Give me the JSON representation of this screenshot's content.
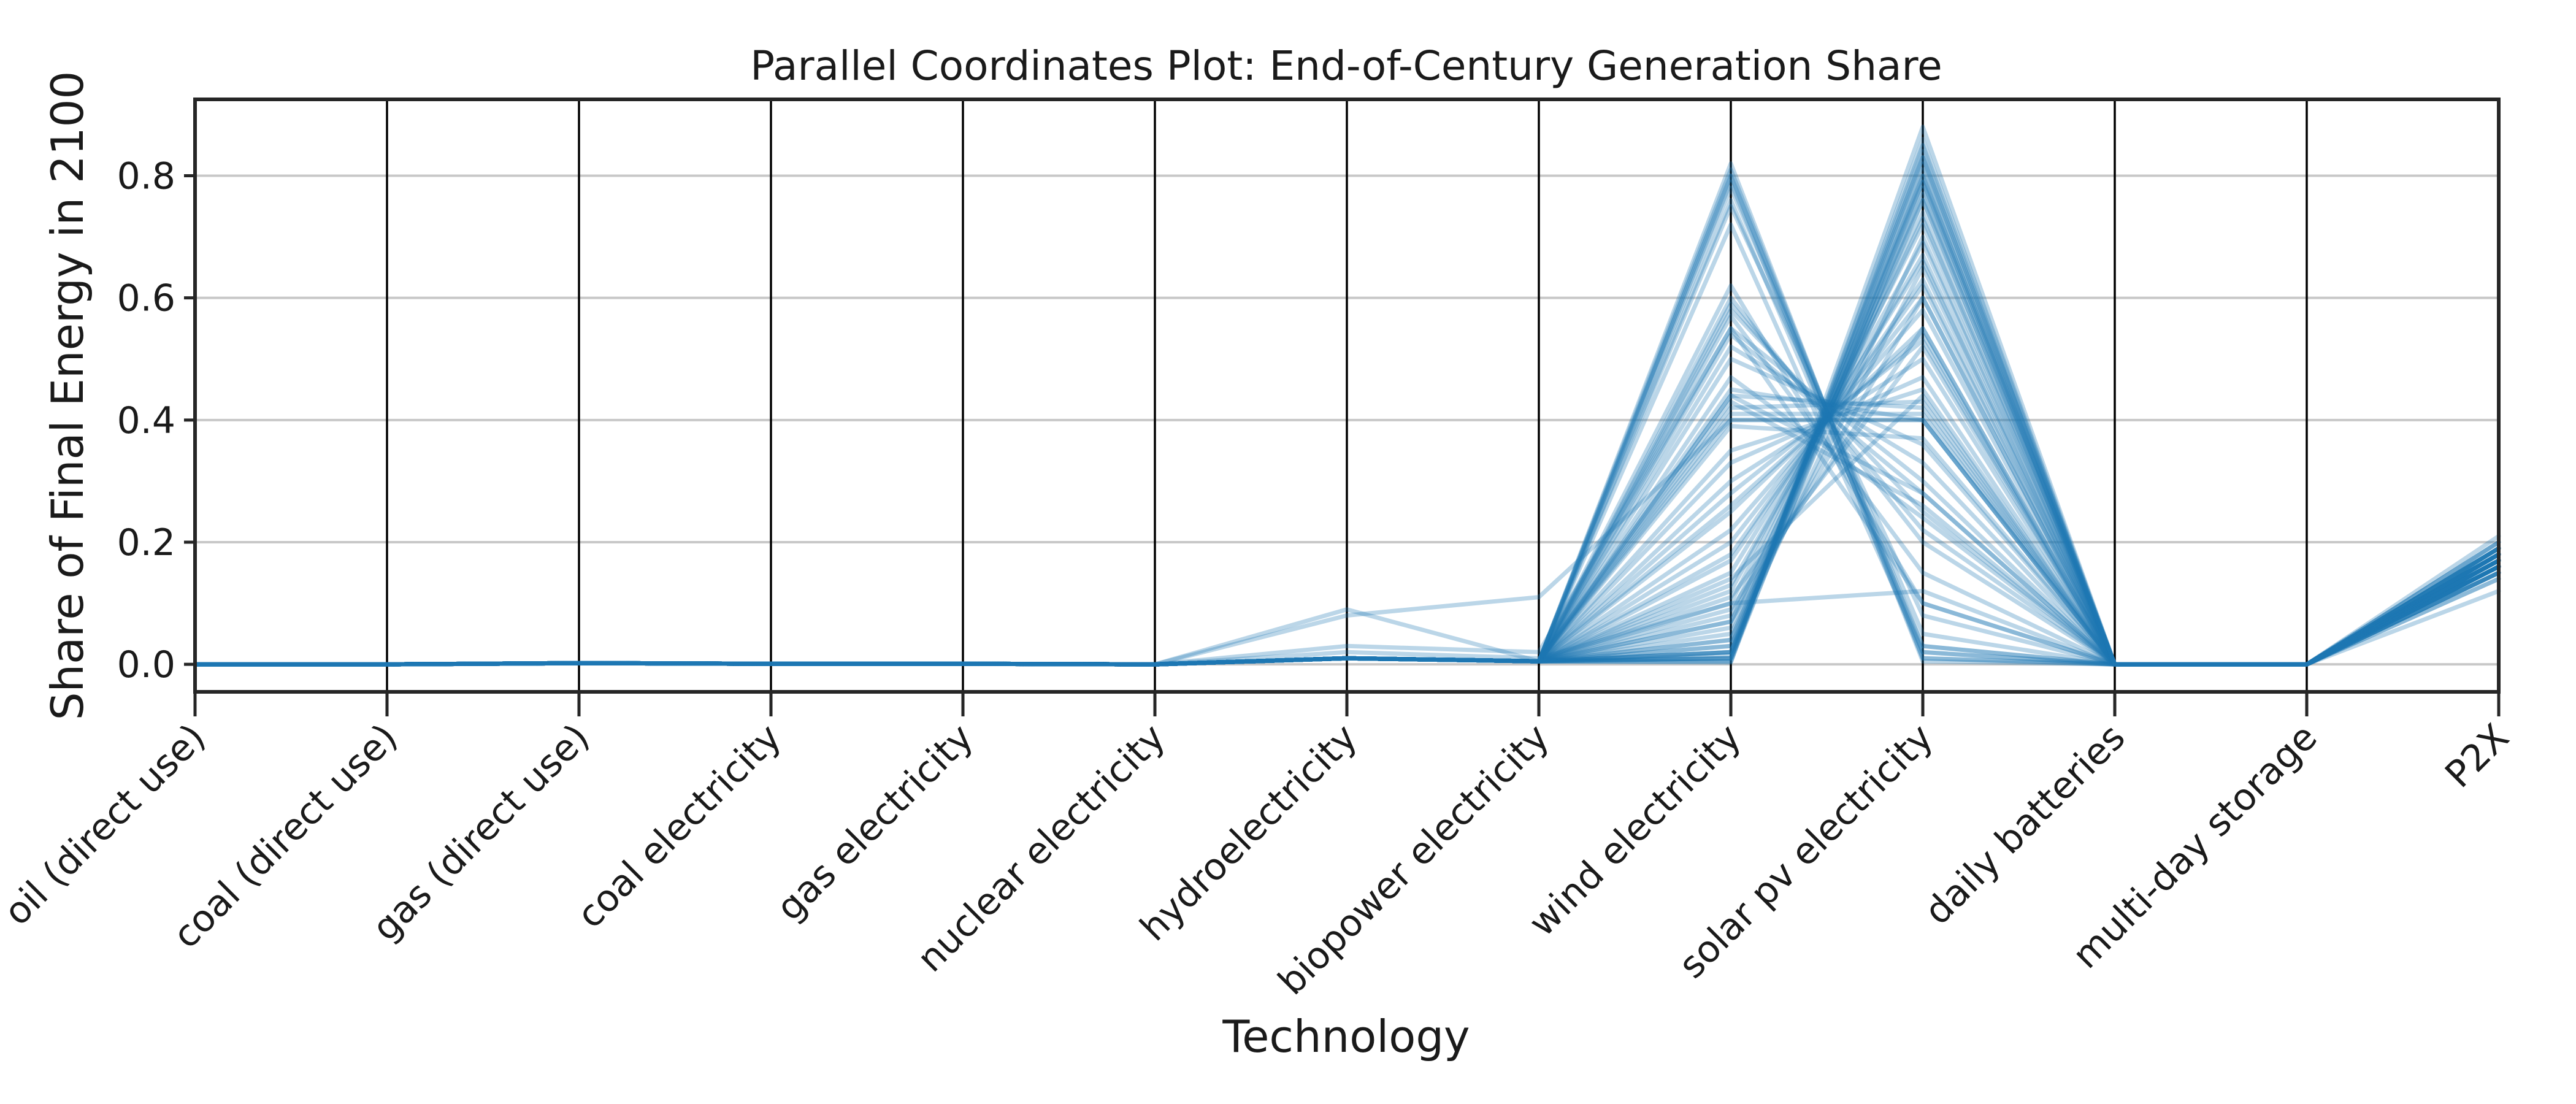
{
  "chart_data": {
    "type": "parallel-coordinates",
    "title": "Parallel Coordinates Plot: End-of-Century Generation Share",
    "xlabel": "Technology",
    "ylabel": "Share of Final Energy in 2100",
    "categories": [
      "oil (direct use)",
      "coal (direct use)",
      "gas (direct use)",
      "coal electricity",
      "gas electricity",
      "nuclear electricity",
      "hydroelectricity",
      "biopower electricity",
      "wind electricity",
      "solar pv electricity",
      "daily batteries",
      "multi-day storage",
      "P2X"
    ],
    "yticks": [
      0.0,
      0.2,
      0.4,
      0.6,
      0.8
    ],
    "ytick_labels": [
      "0.0",
      "0.2",
      "0.4",
      "0.6",
      "0.8"
    ],
    "ylim": [
      -0.045,
      0.925
    ],
    "grid": "horizontal",
    "line_color": "#1f77b4",
    "line_alpha": 0.3,
    "series": [
      {
        "values": [
          0,
          0,
          0.002,
          0.001,
          0.001,
          0,
          0.01,
          0.005,
          0.82,
          0.01,
          0,
          0,
          0.17
        ]
      },
      {
        "values": [
          0,
          0,
          0.002,
          0.001,
          0.001,
          0,
          0.01,
          0.005,
          0.81,
          0.02,
          0,
          0,
          0.16
        ]
      },
      {
        "values": [
          0,
          0,
          0.002,
          0.001,
          0.001,
          0,
          0.01,
          0.005,
          0.8,
          0.03,
          0,
          0,
          0.18
        ]
      },
      {
        "values": [
          0,
          0,
          0.002,
          0.001,
          0.001,
          0,
          0.01,
          0.005,
          0.78,
          0.05,
          0,
          0,
          0.15
        ]
      },
      {
        "values": [
          0,
          0,
          0.002,
          0.001,
          0.001,
          0,
          0.01,
          0.005,
          0.75,
          0.08,
          0,
          0,
          0.17
        ]
      },
      {
        "values": [
          0,
          0,
          0.002,
          0.001,
          0.001,
          0,
          0.01,
          0.005,
          0.6,
          0.2,
          0,
          0,
          0.19
        ]
      },
      {
        "values": [
          0,
          0,
          0.002,
          0.001,
          0.001,
          0,
          0.01,
          0.005,
          0.59,
          0.22,
          0,
          0,
          0.16
        ]
      },
      {
        "values": [
          0,
          0,
          0.002,
          0.001,
          0.001,
          0,
          0.01,
          0.005,
          0.58,
          0.25,
          0,
          0,
          0.18
        ]
      },
      {
        "values": [
          0,
          0,
          0.002,
          0.001,
          0.001,
          0,
          0.01,
          0.005,
          0.55,
          0.3,
          0,
          0,
          0.17
        ]
      },
      {
        "values": [
          0,
          0,
          0.002,
          0.001,
          0.001,
          0,
          0.01,
          0.005,
          0.52,
          0.33,
          0,
          0,
          0.14
        ]
      },
      {
        "values": [
          0,
          0,
          0.002,
          0.001,
          0.001,
          0,
          0.01,
          0.005,
          0.5,
          0.36,
          0,
          0,
          0.16
        ]
      },
      {
        "values": [
          0,
          0,
          0.002,
          0.001,
          0.001,
          0,
          0.01,
          0.005,
          0.45,
          0.4,
          0,
          0,
          0.18
        ]
      },
      {
        "values": [
          0,
          0,
          0.002,
          0.001,
          0.001,
          0,
          0.01,
          0.005,
          0.44,
          0.42,
          0,
          0,
          0.17
        ]
      },
      {
        "values": [
          0,
          0,
          0.002,
          0.001,
          0.001,
          0,
          0.01,
          0.005,
          0.42,
          0.43,
          0,
          0,
          0.15
        ]
      },
      {
        "values": [
          0,
          0,
          0.002,
          0.001,
          0.001,
          0,
          0.01,
          0.005,
          0.41,
          0.41,
          0,
          0,
          0.19
        ]
      },
      {
        "values": [
          0,
          0,
          0.002,
          0.001,
          0.001,
          0,
          0.01,
          0.005,
          0.4,
          0.4,
          0,
          0,
          0.16
        ]
      },
      {
        "values": [
          0,
          0,
          0.002,
          0.001,
          0.001,
          0,
          0.01,
          0.005,
          0.39,
          0.37,
          0,
          0,
          0.18
        ]
      },
      {
        "values": [
          0,
          0,
          0.002,
          0.001,
          0.001,
          0,
          0.01,
          0.005,
          0.3,
          0.5,
          0,
          0,
          0.17
        ]
      },
      {
        "values": [
          0,
          0,
          0.002,
          0.001,
          0.001,
          0,
          0.01,
          0.005,
          0.28,
          0.53,
          0,
          0,
          0.2
        ]
      },
      {
        "values": [
          0,
          0,
          0.002,
          0.001,
          0.001,
          0,
          0.01,
          0.005,
          0.25,
          0.55,
          0,
          0,
          0.16
        ]
      },
      {
        "values": [
          0,
          0,
          0.002,
          0.001,
          0.001,
          0,
          0.01,
          0.005,
          0.22,
          0.58,
          0,
          0,
          0.18
        ]
      },
      {
        "values": [
          0,
          0,
          0.002,
          0.001,
          0.001,
          0,
          0.01,
          0.005,
          0.2,
          0.6,
          0,
          0,
          0.17
        ]
      },
      {
        "values": [
          0,
          0,
          0.002,
          0.001,
          0.001,
          0,
          0.01,
          0.005,
          0.17,
          0.63,
          0,
          0,
          0.15
        ]
      },
      {
        "values": [
          0,
          0,
          0.002,
          0.001,
          0.001,
          0,
          0.01,
          0.005,
          0.15,
          0.66,
          0,
          0,
          0.19
        ]
      },
      {
        "values": [
          0,
          0,
          0.002,
          0.001,
          0.001,
          0,
          0.01,
          0.005,
          0.12,
          0.69,
          0,
          0,
          0.16
        ]
      },
      {
        "values": [
          0,
          0,
          0.002,
          0.001,
          0.001,
          0,
          0.01,
          0.005,
          0.1,
          0.72,
          0,
          0,
          0.18
        ]
      },
      {
        "values": [
          0,
          0,
          0.002,
          0.001,
          0.001,
          0,
          0.01,
          0.005,
          0.08,
          0.74,
          0,
          0,
          0.17
        ]
      },
      {
        "values": [
          0,
          0,
          0.002,
          0.001,
          0.001,
          0,
          0.01,
          0.005,
          0.06,
          0.76,
          0,
          0,
          0.2
        ]
      },
      {
        "values": [
          0,
          0,
          0.002,
          0.001,
          0.001,
          0,
          0.01,
          0.005,
          0.04,
          0.79,
          0,
          0,
          0.16
        ]
      },
      {
        "values": [
          0,
          0,
          0.002,
          0.001,
          0.001,
          0,
          0.01,
          0.005,
          0.02,
          0.82,
          0,
          0,
          0.18
        ]
      },
      {
        "values": [
          0,
          0,
          0.002,
          0.001,
          0.001,
          0,
          0.01,
          0.005,
          0.01,
          0.84,
          0,
          0,
          0.17
        ]
      },
      {
        "values": [
          0,
          0,
          0.002,
          0.001,
          0.001,
          0,
          0.01,
          0.005,
          0.005,
          0.86,
          0,
          0,
          0.19
        ]
      },
      {
        "values": [
          0,
          0,
          0.002,
          0.001,
          0.001,
          0,
          0.01,
          0.005,
          0.003,
          0.88,
          0,
          0,
          0.21
        ]
      },
      {
        "values": [
          0,
          0,
          0.002,
          0.001,
          0.001,
          0,
          0.01,
          0.005,
          0.01,
          0.85,
          0,
          0,
          0.14
        ]
      },
      {
        "values": [
          0,
          0,
          0.002,
          0.001,
          0.001,
          0,
          0.01,
          0.005,
          0.02,
          0.83,
          0,
          0,
          0.17
        ]
      },
      {
        "values": [
          0,
          0,
          0.002,
          0.001,
          0.001,
          0,
          0.01,
          0.005,
          0.005,
          0.8,
          0,
          0,
          0.18
        ]
      },
      {
        "values": [
          0,
          0,
          0.002,
          0.001,
          0.001,
          0,
          0.01,
          0.005,
          0.01,
          0.78,
          0,
          0,
          0.16
        ]
      },
      {
        "values": [
          0,
          0,
          0.002,
          0.001,
          0.001,
          0,
          0.01,
          0.005,
          0.02,
          0.76,
          0,
          0,
          0.19
        ]
      },
      {
        "values": [
          0,
          0,
          0.002,
          0.001,
          0.001,
          0,
          0.01,
          0.005,
          0.03,
          0.7,
          0,
          0,
          0.15
        ]
      },
      {
        "values": [
          0,
          0,
          0.002,
          0.001,
          0.001,
          0,
          0.01,
          0.005,
          0.05,
          0.65,
          0,
          0,
          0.17
        ]
      },
      {
        "values": [
          0,
          0,
          0.002,
          0.001,
          0.001,
          0,
          0.01,
          0.005,
          0.07,
          0.6,
          0,
          0,
          0.18
        ]
      },
      {
        "values": [
          0,
          0,
          0.002,
          0.001,
          0.001,
          0,
          0.01,
          0.005,
          0.09,
          0.55,
          0,
          0,
          0.16
        ]
      },
      {
        "values": [
          0,
          0,
          0.002,
          0.001,
          0.001,
          0,
          0.01,
          0.005,
          0.11,
          0.52,
          0,
          0,
          0.19
        ]
      },
      {
        "values": [
          0,
          0,
          0.002,
          0.001,
          0.001,
          0,
          0.01,
          0.005,
          0.14,
          0.44,
          0,
          0,
          0.17
        ]
      },
      {
        "values": [
          0,
          0,
          0.002,
          0.001,
          0.001,
          0,
          0.01,
          0.005,
          0.8,
          0.005,
          0,
          0,
          0.15
        ]
      },
      {
        "values": [
          0,
          0,
          0.002,
          0.001,
          0.001,
          0,
          0.01,
          0.005,
          0.79,
          0.01,
          0,
          0,
          0.18
        ]
      },
      {
        "values": [
          0,
          0,
          0.002,
          0.001,
          0.001,
          0,
          0.01,
          0.005,
          0.76,
          0.03,
          0,
          0,
          0.16
        ]
      },
      {
        "values": [
          0,
          0,
          0.002,
          0.001,
          0.001,
          0,
          0.01,
          0.005,
          0.72,
          0.02,
          0,
          0,
          0.19
        ]
      },
      {
        "values": [
          0,
          0,
          0.002,
          0.001,
          0.001,
          0,
          0.01,
          0.005,
          0.62,
          0.1,
          0,
          0,
          0.17
        ]
      },
      {
        "values": [
          0,
          0,
          0.002,
          0.001,
          0.001,
          0,
          0.01,
          0.005,
          0.57,
          0.15,
          0,
          0,
          0.16
        ]
      },
      {
        "values": [
          0,
          0,
          0.002,
          0.001,
          0.001,
          0,
          0.01,
          0.005,
          0.54,
          0.28,
          0,
          0,
          0.18
        ]
      },
      {
        "values": [
          0,
          0,
          0.002,
          0.001,
          0.001,
          0,
          0.01,
          0.005,
          0.47,
          0.24,
          0,
          0,
          0.17
        ]
      },
      {
        "values": [
          0,
          0,
          0.002,
          0.001,
          0.001,
          0,
          0.01,
          0.005,
          0.43,
          0.26,
          0,
          0,
          0.2
        ]
      },
      {
        "values": [
          0,
          0,
          0.002,
          0.001,
          0.001,
          0,
          0.01,
          0.005,
          0.35,
          0.45,
          0,
          0,
          0.16
        ]
      },
      {
        "values": [
          0,
          0,
          0.002,
          0.001,
          0.001,
          0,
          0.01,
          0.005,
          0.33,
          0.47,
          0,
          0,
          0.18
        ]
      },
      {
        "values": [
          0,
          0,
          0.002,
          0.001,
          0.001,
          0,
          0.01,
          0.005,
          0.26,
          0.54,
          0,
          0,
          0.17
        ]
      },
      {
        "values": [
          0,
          0,
          0.002,
          0.001,
          0.001,
          0,
          0.01,
          0.005,
          0.18,
          0.62,
          0,
          0,
          0.19
        ]
      },
      {
        "values": [
          0,
          0,
          0.002,
          0.001,
          0.001,
          0,
          0.01,
          0.005,
          0.13,
          0.67,
          0,
          0,
          0.15
        ]
      },
      {
        "values": [
          0,
          0,
          0.002,
          0.001,
          0.001,
          0,
          0.01,
          0.005,
          0.07,
          0.73,
          0,
          0,
          0.17
        ]
      },
      {
        "values": [
          0,
          0,
          0.002,
          0.001,
          0.001,
          0,
          0.01,
          0.005,
          0.04,
          0.77,
          0,
          0,
          0.18
        ]
      },
      {
        "values": [
          0,
          0,
          0.002,
          0.001,
          0.001,
          0,
          0.01,
          0.005,
          0.015,
          0.81,
          0,
          0,
          0.16
        ]
      },
      {
        "values": [
          0,
          0,
          0.002,
          0.001,
          0.001,
          0,
          0.01,
          0.005,
          0.02,
          0.79,
          0,
          0,
          0.17
        ]
      },
      {
        "values": [
          0,
          0,
          0.002,
          0.001,
          0.001,
          0,
          0.01,
          0.005,
          0.03,
          0.8,
          0,
          0,
          0.19
        ]
      },
      {
        "values": [
          0,
          0,
          0.002,
          0.001,
          0.001,
          0,
          0.01,
          0.005,
          0.01,
          0.83,
          0,
          0,
          0.18
        ]
      },
      {
        "values": [
          0,
          0,
          0.002,
          0.001,
          0.001,
          0,
          0.08,
          0.11,
          0.4,
          0.4,
          0,
          0,
          0.12
        ]
      },
      {
        "values": [
          0,
          0,
          0.002,
          0.001,
          0.001,
          0,
          0.09,
          0.005,
          0.44,
          0.28,
          0,
          0,
          0.17
        ]
      },
      {
        "values": [
          0,
          0,
          0.002,
          0.001,
          0.001,
          0,
          0.03,
          0.02,
          0.55,
          0.1,
          0,
          0,
          0.18
        ]
      },
      {
        "values": [
          0,
          0,
          0.002,
          0.001,
          0.001,
          0,
          0.02,
          0.01,
          0.1,
          0.12,
          0,
          0,
          0.16
        ]
      }
    ]
  }
}
